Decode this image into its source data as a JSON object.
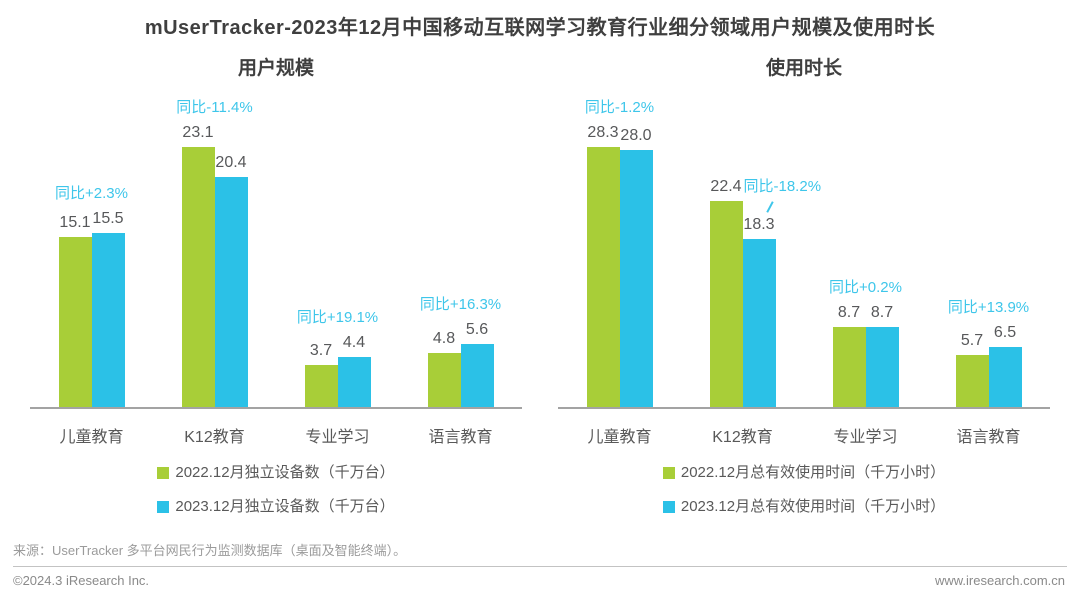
{
  "page": {
    "title": "mUserTracker-2023年12月中国移动互联网学习教育行业细分领域用户规模及使用时长",
    "source": "来源：UserTracker 多平台网民行为监测数据库（桌面及智能终端）。",
    "copyright": "©2024.3 iResearch Inc.",
    "website": "www.iresearch.com.cn"
  },
  "colors": {
    "series_2022": "#a8ce38",
    "series_2023": "#2bc1e7",
    "yoy_text": "#3ec6ea",
    "value_text": "#57585a",
    "axis_line": "#a3a3a3"
  },
  "chart_data": [
    {
      "id": "user-scale",
      "type": "bar",
      "title": "用户规模",
      "categories": [
        "儿童教育",
        "K12教育",
        "专业学习",
        "语言教育"
      ],
      "series": [
        {
          "name": "2022.12月独立设备数（千万台）",
          "color": "#a8ce38",
          "values": [
            15.1,
            23.1,
            3.7,
            4.8
          ]
        },
        {
          "name": "2023.12月独立设备数（千万台）",
          "color": "#2bc1e7",
          "values": [
            15.5,
            20.4,
            4.4,
            5.6
          ]
        }
      ],
      "yoy_labels": [
        "同比+2.3%",
        "同比-11.4%",
        "同比+19.1%",
        "同比+16.3%"
      ],
      "yoy_placement": [
        "above",
        "above",
        "above",
        "above"
      ],
      "ylim": [
        0,
        23.1
      ],
      "grid": false,
      "legend_position": "bottom"
    },
    {
      "id": "usage-duration",
      "type": "bar",
      "title": "使用时长",
      "categories": [
        "儿童教育",
        "K12教育",
        "专业学习",
        "语言教育"
      ],
      "series": [
        {
          "name": "2022.12月总有效使用时间（千万小时）",
          "color": "#a8ce38",
          "values": [
            28.3,
            22.4,
            8.7,
            5.7
          ]
        },
        {
          "name": "2023.12月总有效使用时间（千万小时）",
          "color": "#2bc1e7",
          "values": [
            28.0,
            18.3,
            8.7,
            6.5
          ]
        }
      ],
      "yoy_labels": [
        "同比-1.2%",
        "同比-18.2%",
        "同比+0.2%",
        "同比+13.9%"
      ],
      "yoy_placement": [
        "above",
        "beside",
        "above",
        "above"
      ],
      "ylim": [
        0,
        28.3
      ],
      "grid": false,
      "legend_position": "bottom"
    }
  ]
}
